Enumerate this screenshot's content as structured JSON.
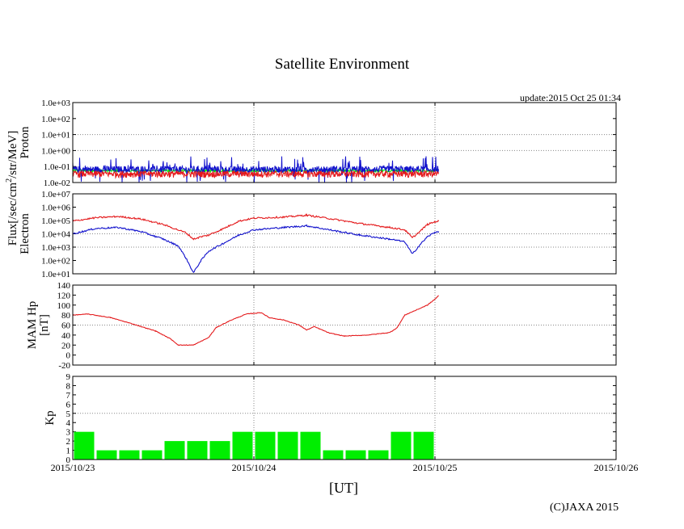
{
  "page": {
    "title": "Satellite Environment",
    "update": "update:2015 Oct 25 01:34",
    "copyright": "(C)JAXA 2015",
    "xlabel": "[UT]",
    "shared_ylabel": [
      "Flux[/sec/cm",
      "2",
      "/str/MeV]"
    ]
  },
  "colors": {
    "red": "#e41a1c",
    "blue": "#1111cc",
    "green": "#00ee00",
    "grid": "#888888"
  },
  "chart_data": [
    {
      "type": "line",
      "title": "",
      "ylabel": "Proton",
      "yscale": "log",
      "ylim": [
        0.01,
        1000
      ],
      "yticks": [
        {
          "v": 0.01,
          "l": "1.0e-02"
        },
        {
          "v": 0.1,
          "l": "1.0e-01"
        },
        {
          "v": 1,
          "l": "1.0e+00"
        },
        {
          "v": 10,
          "l": "1.0e+01"
        },
        {
          "v": 100,
          "l": "1.0e+02"
        },
        {
          "v": 1000,
          "l": "1.0e+03"
        }
      ],
      "x": [
        "2015/10/23",
        "2015/10/23 12:00",
        "2015/10/24",
        "2015/10/24 12:00",
        "2015/10/25",
        "2015/10/25 00:30"
      ],
      "series": [
        {
          "color": "green",
          "values": [
            0.055,
            0.055,
            0.06,
            0.055,
            0.055,
            0.055
          ]
        },
        {
          "color": "blue",
          "values": [
            0.07,
            0.075,
            0.07,
            0.07,
            0.07,
            0.07
          ]
        },
        {
          "color": "red",
          "values": [
            0.02,
            0.02,
            0.02,
            0.02,
            0.02,
            0.02
          ]
        }
      ]
    },
    {
      "type": "line",
      "title": "",
      "ylabel": "Electron",
      "yscale": "log",
      "ylim": [
        10,
        10000000
      ],
      "yticks": [
        {
          "v": 10,
          "l": "1.0e+01"
        },
        {
          "v": 100,
          "l": "1.0e+02"
        },
        {
          "v": 1000,
          "l": "1.0e+03"
        },
        {
          "v": 10000,
          "l": "1.0e+04"
        },
        {
          "v": 100000,
          "l": "1.0e+05"
        },
        {
          "v": 1000000,
          "l": "1.0e+06"
        },
        {
          "v": 10000000,
          "l": "1.0e+07"
        }
      ],
      "series": [
        {
          "color": "red",
          "points": [
            [
              "2015/10/23 00:00",
              90000
            ],
            [
              "2015/10/23 03:00",
              160000
            ],
            [
              "2015/10/23 06:00",
              200000
            ],
            [
              "2015/10/23 09:00",
              130000
            ],
            [
              "2015/10/23 12:00",
              50000
            ],
            [
              "2015/10/23 15:00",
              12000
            ],
            [
              "2015/10/23 16:00",
              4000
            ],
            [
              "2015/10/23 17:00",
              6000
            ],
            [
              "2015/10/23 18:00",
              8000
            ],
            [
              "2015/10/23 20:00",
              25000
            ],
            [
              "2015/10/23 22:00",
              90000
            ],
            [
              "2015/10/24 00:00",
              150000
            ],
            [
              "2015/10/24 04:00",
              180000
            ],
            [
              "2015/10/24 07:00",
              250000
            ],
            [
              "2015/10/24 10:00",
              140000
            ],
            [
              "2015/10/24 14:00",
              60000
            ],
            [
              "2015/10/24 18:00",
              30000
            ],
            [
              "2015/10/24 20:00",
              20000
            ],
            [
              "2015/10/24 21:00",
              5000
            ],
            [
              "2015/10/24 22:00",
              15000
            ],
            [
              "2015/10/24 23:00",
              50000
            ],
            [
              "2015/10/25 00:00",
              80000
            ],
            [
              "2015/10/25 00:30",
              90000
            ]
          ]
        },
        {
          "color": "blue",
          "points": [
            [
              "2015/10/23 00:00",
              10000
            ],
            [
              "2015/10/23 03:00",
              25000
            ],
            [
              "2015/10/23 06:00",
              30000
            ],
            [
              "2015/10/23 09:00",
              15000
            ],
            [
              "2015/10/23 12:00",
              4000
            ],
            [
              "2015/10/23 14:00",
              1200
            ],
            [
              "2015/10/23 15:00",
              150
            ],
            [
              "2015/10/23 16:00",
              12
            ],
            [
              "2015/10/23 17:00",
              100
            ],
            [
              "2015/10/23 18:00",
              500
            ],
            [
              "2015/10/23 20:00",
              2000
            ],
            [
              "2015/10/23 22:00",
              8000
            ],
            [
              "2015/10/24 00:00",
              20000
            ],
            [
              "2015/10/24 04:00",
              30000
            ],
            [
              "2015/10/24 07:00",
              40000
            ],
            [
              "2015/10/24 10:00",
              20000
            ],
            [
              "2015/10/24 14:00",
              8000
            ],
            [
              "2015/10/24 18:00",
              4000
            ],
            [
              "2015/10/24 20:00",
              2500
            ],
            [
              "2015/10/24 21:00",
              300
            ],
            [
              "2015/10/24 22:00",
              1500
            ],
            [
              "2015/10/24 23:00",
              6000
            ],
            [
              "2015/10/25 00:00",
              13000
            ],
            [
              "2015/10/25 00:30",
              15000
            ]
          ]
        }
      ]
    },
    {
      "type": "line",
      "title": "",
      "ylabel": [
        "MAM Hp",
        "[nT]"
      ],
      "ylim": [
        -20,
        140
      ],
      "yticks": [
        {
          "v": -20,
          "l": "-20"
        },
        {
          "v": 0,
          "l": "0"
        },
        {
          "v": 20,
          "l": "20"
        },
        {
          "v": 40,
          "l": "40"
        },
        {
          "v": 60,
          "l": "60"
        },
        {
          "v": 80,
          "l": "80"
        },
        {
          "v": 100,
          "l": "100"
        },
        {
          "v": 120,
          "l": "120"
        },
        {
          "v": 140,
          "l": "140"
        }
      ],
      "series": [
        {
          "color": "red",
          "points": [
            [
              "2015/10/23 00:00",
              80
            ],
            [
              "2015/10/23 02:00",
              82
            ],
            [
              "2015/10/23 05:00",
              75
            ],
            [
              "2015/10/23 08:00",
              62
            ],
            [
              "2015/10/23 11:00",
              48
            ],
            [
              "2015/10/23 13:00",
              32
            ],
            [
              "2015/10/23 14:00",
              20
            ],
            [
              "2015/10/23 16:00",
              20
            ],
            [
              "2015/10/23 18:00",
              35
            ],
            [
              "2015/10/23 19:00",
              55
            ],
            [
              "2015/10/23 21:00",
              70
            ],
            [
              "2015/10/23 23:00",
              82
            ],
            [
              "2015/10/24 01:00",
              85
            ],
            [
              "2015/10/24 02:00",
              75
            ],
            [
              "2015/10/24 04:00",
              70
            ],
            [
              "2015/10/24 06:00",
              60
            ],
            [
              "2015/10/24 07:00",
              50
            ],
            [
              "2015/10/24 08:00",
              57
            ],
            [
              "2015/10/24 10:00",
              44
            ],
            [
              "2015/10/24 12:00",
              38
            ],
            [
              "2015/10/24 15:00",
              40
            ],
            [
              "2015/10/24 18:00",
              45
            ],
            [
              "2015/10/24 19:00",
              55
            ],
            [
              "2015/10/24 20:00",
              80
            ],
            [
              "2015/10/24 23:00",
              100
            ],
            [
              "2015/10/25 00:00",
              112
            ],
            [
              "2015/10/25 00:30",
              119
            ]
          ]
        }
      ]
    },
    {
      "type": "bar",
      "title": "",
      "ylabel": "Kp",
      "ylim": [
        0,
        9
      ],
      "yticks": [
        {
          "v": 0,
          "l": "0"
        },
        {
          "v": 1,
          "l": "1"
        },
        {
          "v": 2,
          "l": "2"
        },
        {
          "v": 3,
          "l": "3"
        },
        {
          "v": 4,
          "l": "4"
        },
        {
          "v": 5,
          "l": "5"
        },
        {
          "v": 6,
          "l": "6"
        },
        {
          "v": 7,
          "l": "7"
        },
        {
          "v": 8,
          "l": "8"
        },
        {
          "v": 9,
          "l": "9"
        }
      ],
      "bars": [
        {
          "start": "2015/10/23 00:00",
          "value": 3
        },
        {
          "start": "2015/10/23 03:00",
          "value": 1
        },
        {
          "start": "2015/10/23 06:00",
          "value": 1
        },
        {
          "start": "2015/10/23 09:00",
          "value": 1
        },
        {
          "start": "2015/10/23 12:00",
          "value": 2
        },
        {
          "start": "2015/10/23 15:00",
          "value": 2
        },
        {
          "start": "2015/10/23 18:00",
          "value": 2
        },
        {
          "start": "2015/10/23 21:00",
          "value": 3
        },
        {
          "start": "2015/10/24 00:00",
          "value": 3
        },
        {
          "start": "2015/10/24 03:00",
          "value": 3
        },
        {
          "start": "2015/10/24 06:00",
          "value": 3
        },
        {
          "start": "2015/10/24 09:00",
          "value": 1
        },
        {
          "start": "2015/10/24 12:00",
          "value": 1
        },
        {
          "start": "2015/10/24 15:00",
          "value": 1
        },
        {
          "start": "2015/10/24 18:00",
          "value": 3
        },
        {
          "start": "2015/10/24 21:00",
          "value": 3
        }
      ],
      "bar_hours": 3,
      "xticks": [
        "2015/10/23",
        "2015/10/24",
        "2015/10/25",
        "2015/10/26"
      ],
      "xlim": [
        "2015/10/23 00:00",
        "2015/10/26 00:00"
      ],
      "grid": "dotted"
    }
  ]
}
